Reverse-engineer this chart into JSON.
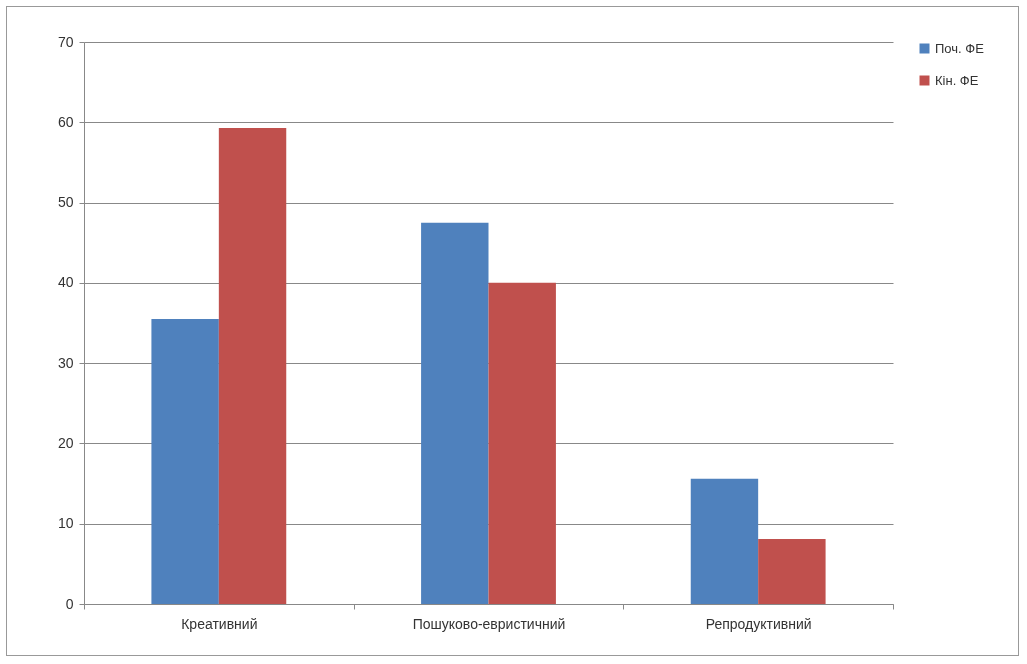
{
  "chart_data": {
    "type": "bar",
    "categories": [
      "Креативний",
      "Пошуково-евристичний",
      "Репродуктивний"
    ],
    "series": [
      {
        "name": "Поч. ФЕ",
        "color": "#4f81bd",
        "values": [
          35.5,
          47.5,
          15.6
        ]
      },
      {
        "name": "Кін. ФЕ",
        "color": "#c0504d",
        "values": [
          59.3,
          40,
          8.1
        ]
      }
    ],
    "ylim": [
      0,
      70
    ],
    "yticks": [
      0,
      10,
      20,
      30,
      40,
      50,
      60,
      70
    ],
    "grid": "y",
    "legend": "right"
  }
}
